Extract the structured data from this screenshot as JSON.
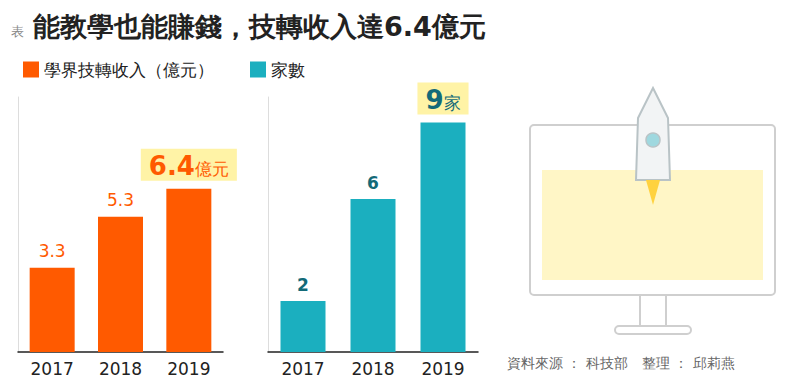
{
  "label": "表",
  "title": "能教學也能賺錢，技轉收入達6.4億元",
  "legend": "top-left",
  "source": "資料來源 ： 科技部　整理 ： 邱莉燕",
  "chart_data": [
    {
      "type": "bar",
      "categories": [
        "2017",
        "2018",
        "2019"
      ],
      "series": [
        {
          "name": "學界技轉收入（億元）",
          "color": "#ff5a00",
          "values": [
            3.3,
            5.3,
            6.4
          ],
          "value_labels": [
            "3.3",
            "5.3",
            "6.4億元"
          ]
        }
      ],
      "ylim": [
        0,
        10
      ],
      "data_labels": true,
      "tick_labels": "x",
      "grid": false
    },
    {
      "type": "bar",
      "categories": [
        "2017",
        "2018",
        "2019"
      ],
      "series": [
        {
          "name": "家數",
          "color": "#1bafbf",
          "values": [
            2,
            6,
            9
          ],
          "value_labels": [
            "2",
            "6",
            "9家"
          ]
        }
      ],
      "ylim": [
        0,
        10
      ],
      "data_labels": true,
      "tick_labels": "x",
      "grid": false
    }
  ]
}
